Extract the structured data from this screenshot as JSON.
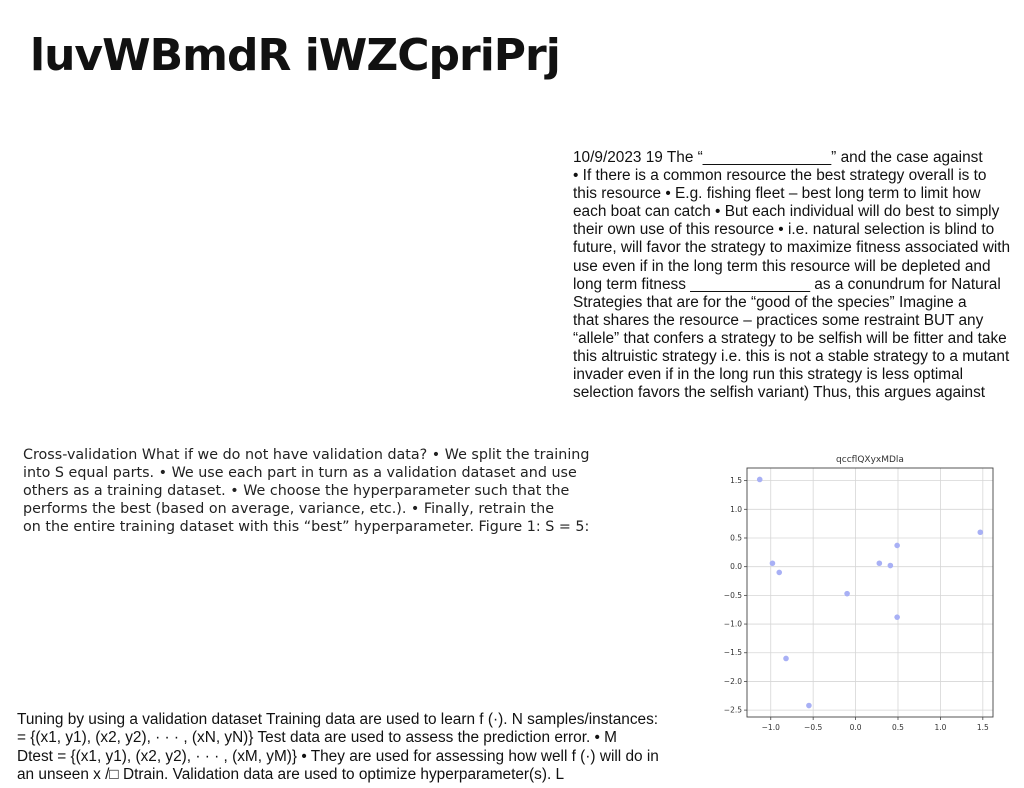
{
  "title": "luvWBmdR iWZCpriPrj",
  "block_right": [
    "10/9/2023 19 The “_______________” and the case against",
    "• If there is a common resource the best strategy overall is to",
    "this resource • E.g. fishing fleet – best long term to limit how",
    "each boat can catch • But each individual will do best to simply",
    "their own use of this resource • i.e. natural selection is blind to",
    "future, will favor the strategy to maximize fitness associated with",
    "use even if in the long term this resource will be depleted and",
    "long term fitness ______________ as a conundrum for Natural",
    "Strategies that are for the “good of the species” Imagine a",
    "that shares the resource – practices some restraint BUT any",
    "“allele” that confers a strategy to be selfish will be fitter and take",
    "this altruistic strategy i.e. this is not a stable strategy to a mutant",
    "invader even if in the long run this strategy is less optimal",
    "selection favors the selfish variant) Thus, this argues against"
  ],
  "block_left": [
    "Cross-validation What if we do not have validation data? • We split the training",
    "into S equal parts. • We use each part in turn as a validation dataset and use",
    "others as a training dataset. • We choose the hyperparameter such that the",
    "performs the best (based on average, variance, etc.). • Finally, retrain the",
    "on the entire training dataset with this “best” hyperparameter. Figure 1: S = 5:"
  ],
  "block_bottom": [
    "Tuning by using a validation dataset Training data are used to learn f (·). N samples/instances:",
    "= {(x1, y1), (x2, y2), · · · , (xN, yN)} Test data are used to assess the prediction error. • M",
    "Dtest = {(x1, y1), (x2, y2), · · · , (xM, yM)} • They are used for assessing how well f (·) will do in",
    "an unseen x /□ Dtrain. Validation data are used to optimize hyperparameter(s). L"
  ],
  "chart_data": {
    "type": "scatter",
    "title": "qccflQXyxMDla",
    "xlabel": "",
    "ylabel": "",
    "xlim": [
      -1.28,
      1.62
    ],
    "ylim": [
      -2.62,
      1.72
    ],
    "xticks": [
      -1.0,
      -0.5,
      0.0,
      0.5,
      1.0,
      1.5
    ],
    "xtick_labels": [
      "−1.0",
      "−0.5",
      "0.0",
      "0.5",
      "1.0",
      "1.5"
    ],
    "yticks": [
      1.5,
      1.0,
      0.5,
      0.0,
      -0.5,
      -1.0,
      -1.5,
      -2.0,
      -2.5
    ],
    "ytick_labels": [
      "1.5",
      "1.0",
      "0.5",
      "0.0",
      "−0.5",
      "−1.0",
      "−1.5",
      "−2.0",
      "−2.5"
    ],
    "grid": true,
    "point_color": "#a8b0f5",
    "points": [
      {
        "x": -1.13,
        "y": 1.52
      },
      {
        "x": -0.98,
        "y": 0.06
      },
      {
        "x": -0.9,
        "y": -0.1
      },
      {
        "x": -0.82,
        "y": -1.6
      },
      {
        "x": -0.55,
        "y": -2.42
      },
      {
        "x": -0.1,
        "y": -0.47
      },
      {
        "x": 0.28,
        "y": 0.06
      },
      {
        "x": 0.41,
        "y": 0.02
      },
      {
        "x": 0.49,
        "y": 0.37
      },
      {
        "x": 0.49,
        "y": -0.88
      },
      {
        "x": 1.47,
        "y": 0.6
      }
    ]
  }
}
